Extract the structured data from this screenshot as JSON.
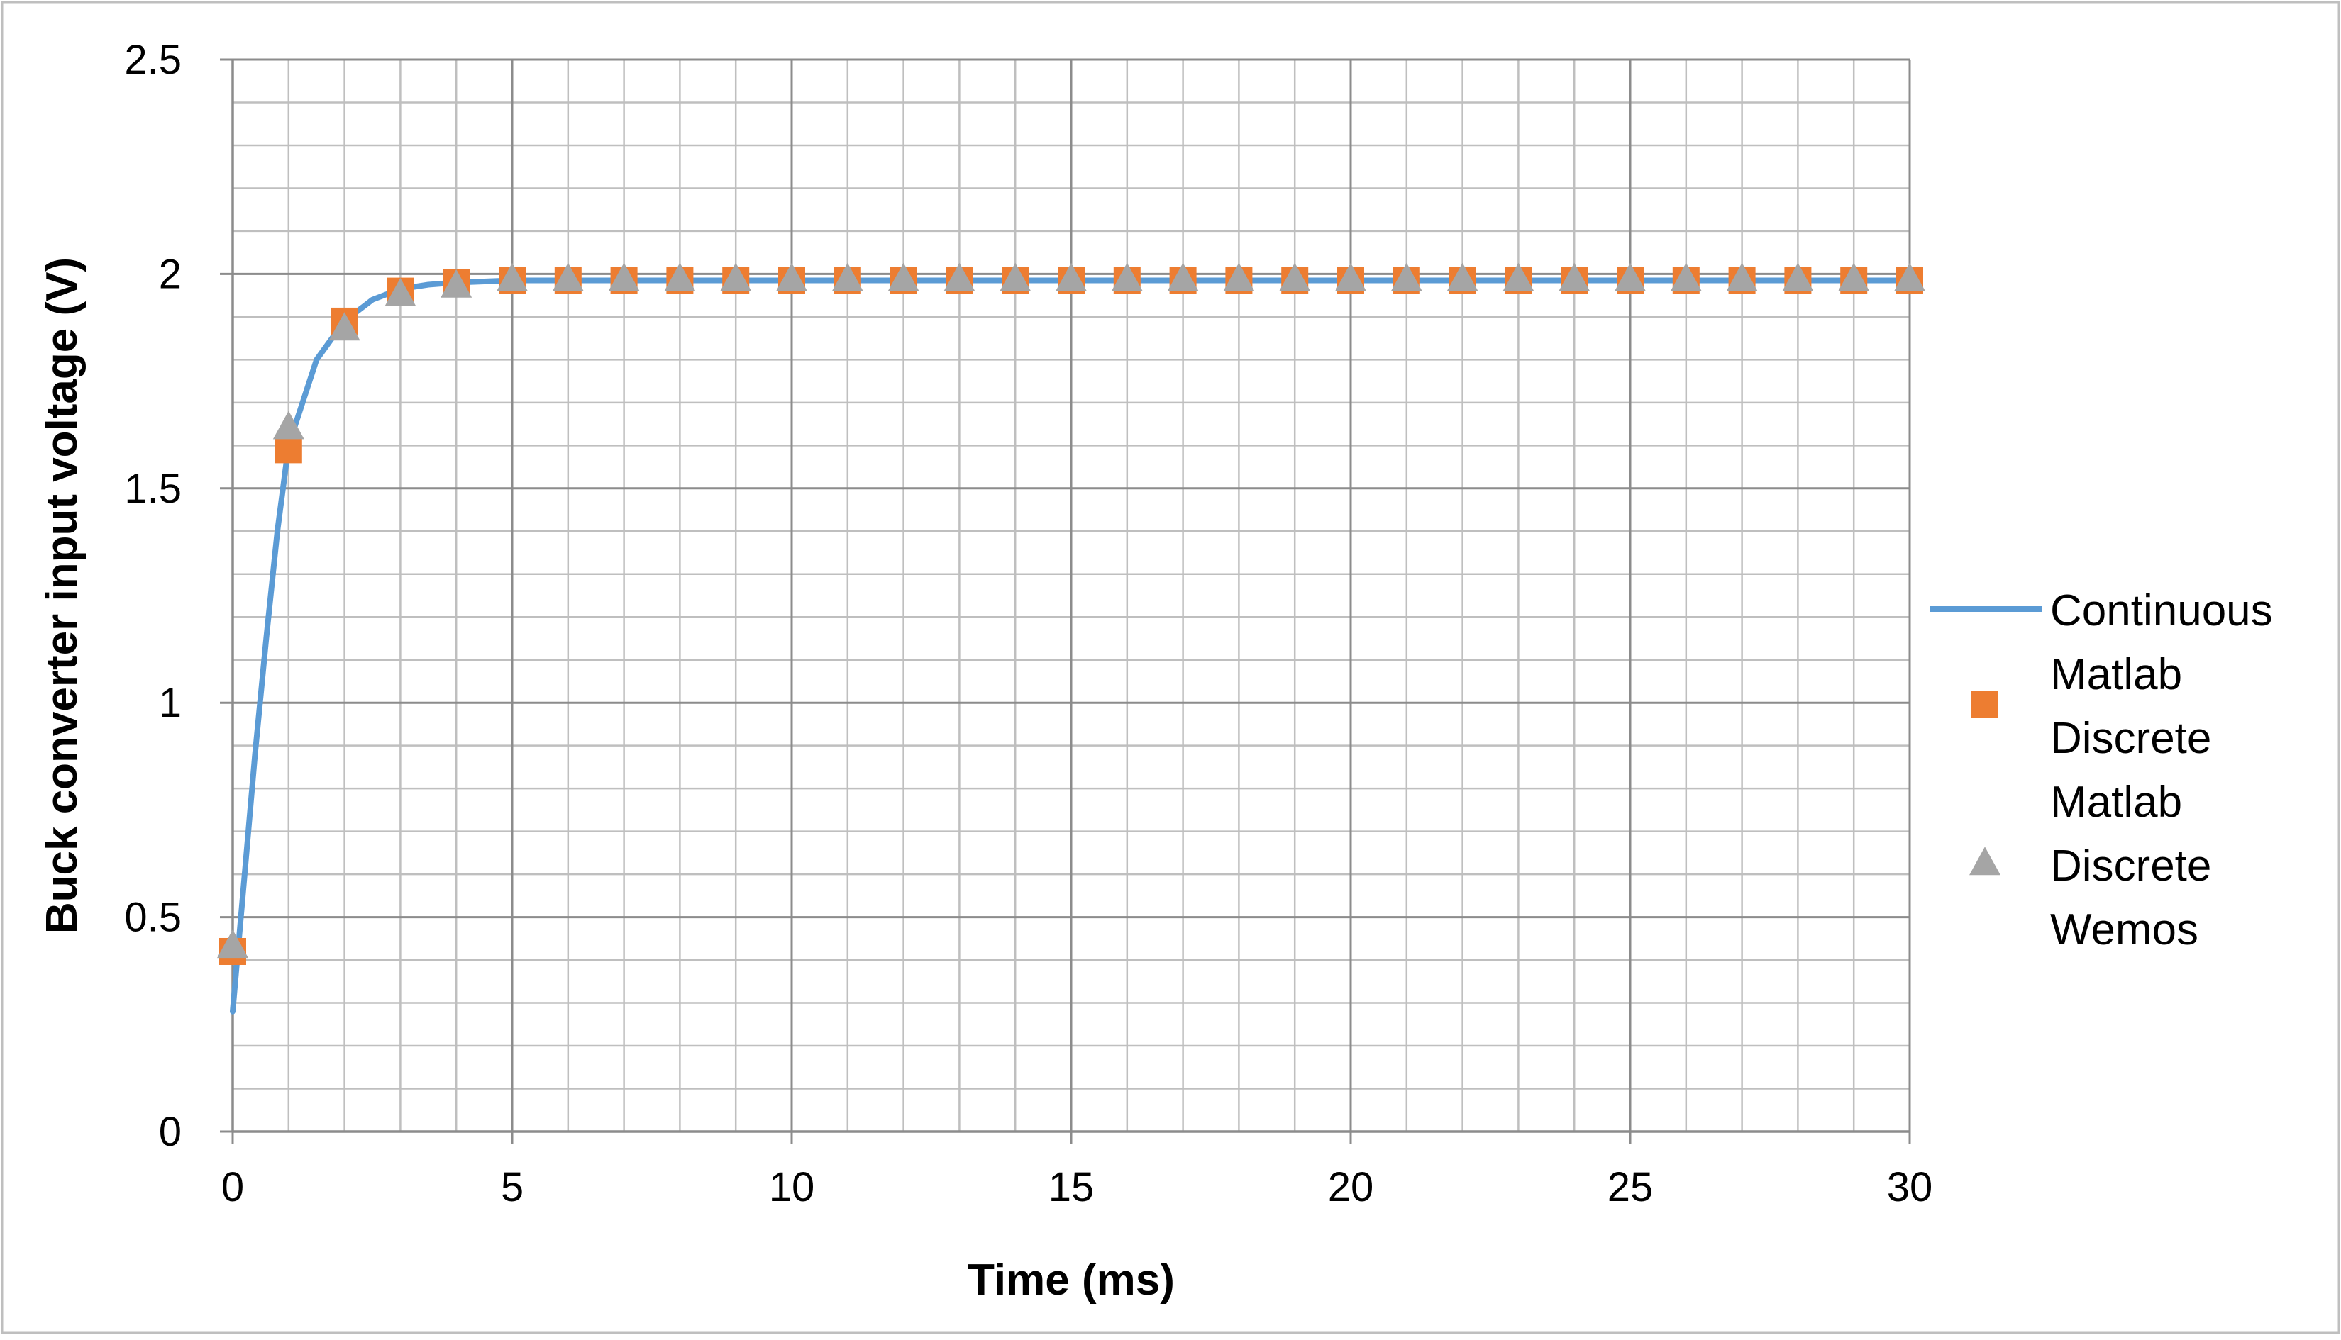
{
  "chart_data": {
    "type": "line",
    "xlabel": "Time (ms)",
    "ylabel": "Buck converter input voltage (V)",
    "xlim": [
      0,
      30
    ],
    "ylim": [
      0,
      2.5
    ],
    "x_ticks": [
      "0",
      "5",
      "10",
      "15",
      "20",
      "25",
      "30"
    ],
    "y_ticks": [
      "0",
      "0.5",
      "1",
      "1.5",
      "2",
      "2.5"
    ],
    "x_minor_step": 1,
    "y_minor_step": 0.1,
    "grid": true,
    "legend_position": "right",
    "series": [
      {
        "name": "Continuous",
        "style": "line",
        "color": "#5B9BD5",
        "x": [
          0,
          0.2,
          0.4,
          0.6,
          0.8,
          1,
          1.5,
          2,
          2.5,
          3,
          3.5,
          4,
          5,
          6,
          7,
          8,
          9,
          10,
          11,
          12,
          13,
          14,
          15,
          16,
          17,
          18,
          19,
          20,
          21,
          22,
          23,
          24,
          25,
          26,
          27,
          28,
          29,
          30
        ],
        "y": [
          0.28,
          0.58,
          0.88,
          1.15,
          1.4,
          1.6,
          1.8,
          1.89,
          1.94,
          1.965,
          1.975,
          1.98,
          1.985,
          1.985,
          1.985,
          1.985,
          1.985,
          1.985,
          1.985,
          1.985,
          1.985,
          1.985,
          1.985,
          1.985,
          1.985,
          1.985,
          1.985,
          1.985,
          1.985,
          1.985,
          1.985,
          1.985,
          1.985,
          1.985,
          1.985,
          1.985,
          1.985,
          1.985
        ]
      },
      {
        "name": "Matlab Discrete",
        "legend_lines": [
          "Matlab",
          "Discrete"
        ],
        "style": "square",
        "color": "#ED7D31",
        "x": [
          0,
          1,
          2,
          3,
          4,
          5,
          6,
          7,
          8,
          9,
          10,
          11,
          12,
          13,
          14,
          15,
          16,
          17,
          18,
          19,
          20,
          21,
          22,
          23,
          24,
          25,
          26,
          27,
          28,
          29,
          30
        ],
        "y": [
          0.42,
          1.59,
          1.89,
          1.96,
          1.98,
          1.985,
          1.985,
          1.985,
          1.985,
          1.985,
          1.985,
          1.985,
          1.985,
          1.985,
          1.985,
          1.985,
          1.985,
          1.985,
          1.985,
          1.985,
          1.985,
          1.985,
          1.985,
          1.985,
          1.985,
          1.985,
          1.985,
          1.985,
          1.985,
          1.985,
          1.985
        ]
      },
      {
        "name": "Matlab Discrete Wemos",
        "legend_lines": [
          "Matlab",
          "Discrete",
          "Wemos"
        ],
        "style": "triangle",
        "color": "#A5A5A5",
        "x": [
          0,
          1,
          2,
          3,
          4,
          5,
          6,
          7,
          8,
          9,
          10,
          11,
          12,
          13,
          14,
          15,
          16,
          17,
          18,
          19,
          20,
          21,
          22,
          23,
          24,
          25,
          26,
          27,
          28,
          29,
          30
        ],
        "y": [
          0.43,
          1.64,
          1.87,
          1.95,
          1.97,
          1.985,
          1.985,
          1.985,
          1.985,
          1.985,
          1.985,
          1.985,
          1.985,
          1.985,
          1.985,
          1.985,
          1.985,
          1.985,
          1.985,
          1.985,
          1.985,
          1.985,
          1.985,
          1.985,
          1.985,
          1.985,
          1.985,
          1.985,
          1.985,
          1.985,
          1.985
        ]
      }
    ]
  }
}
